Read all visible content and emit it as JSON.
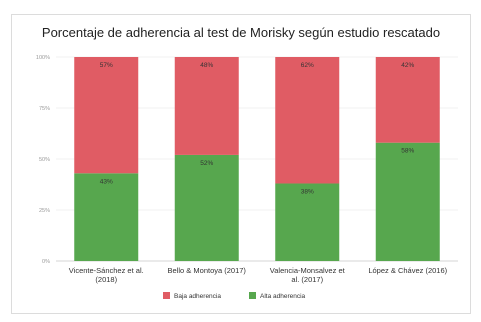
{
  "chart_data": {
    "type": "bar",
    "stacked": true,
    "percent": true,
    "title": "Porcentaje de adherencia al test de Morisky según estudio rescatado",
    "categories": [
      [
        "Vicente-Sánchez et al.",
        "(2018)"
      ],
      [
        "Bello & Montoya (2017)"
      ],
      [
        "Valencia-Monsalvez et",
        "al. (2017)"
      ],
      [
        "López & Chávez (2016)"
      ]
    ],
    "series": [
      {
        "name": "Alta adherencia",
        "color": "#57a74e",
        "values": [
          43,
          52,
          38,
          58
        ],
        "labels": [
          "43%",
          "52%",
          "38%",
          "58%"
        ]
      },
      {
        "name": "Baja adherencia",
        "color": "#e05c64",
        "values": [
          57,
          48,
          62,
          42
        ],
        "labels": [
          "57%",
          "48%",
          "62%",
          "42%"
        ]
      }
    ],
    "ylim": [
      0,
      100
    ],
    "yticks": [
      "0%",
      "25%",
      "50%",
      "75%",
      "100%"
    ],
    "legend": [
      "Baja adherencia",
      "Alta adherencia"
    ],
    "legend_position": "bottom",
    "grid": true
  }
}
